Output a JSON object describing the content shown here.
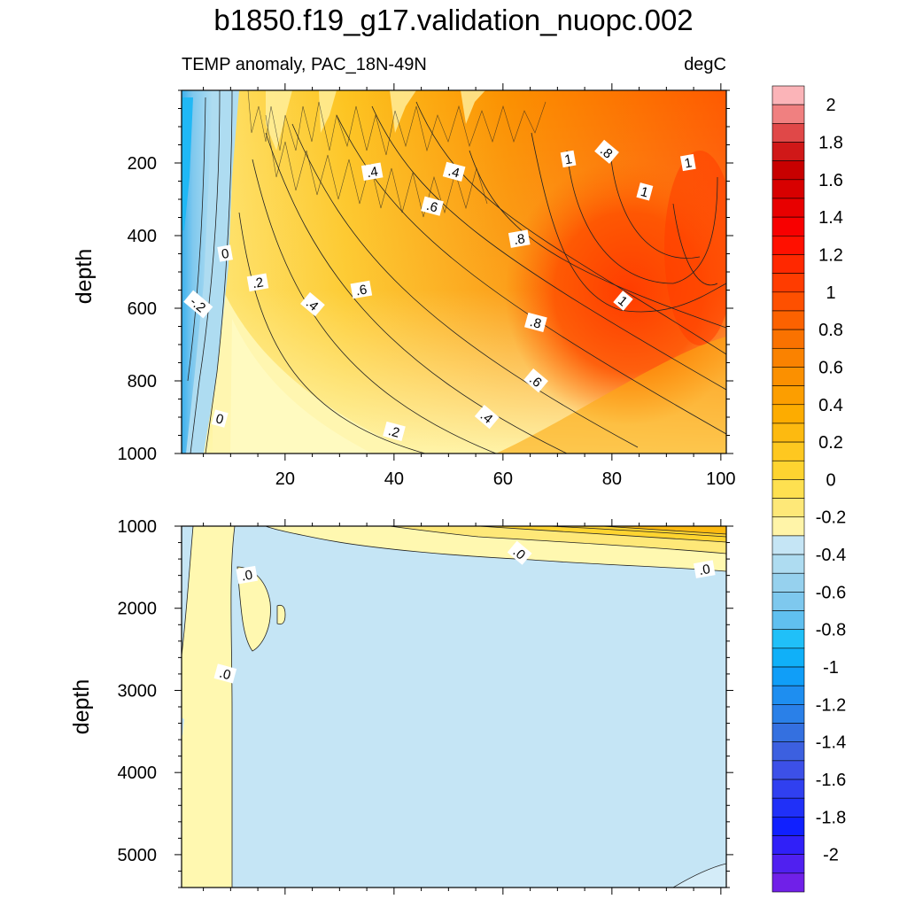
{
  "title": "b1850.f19_g17.validation_nuopc.002",
  "subtitle_left": "TEMP anomaly, PAC_18N-49N",
  "subtitle_right": "degC",
  "chart_data": [
    {
      "type": "heatmap",
      "panel": "upper",
      "x_ticks": [
        20,
        40,
        60,
        80,
        100
      ],
      "x_tick_labels": [
        "20",
        "40",
        "60",
        "80",
        "100"
      ],
      "y_ticks": [
        200,
        400,
        600,
        800,
        1000
      ],
      "y_tick_labels": [
        "200",
        "400",
        "600",
        "800",
        "1000"
      ],
      "xlim": [
        1,
        101
      ],
      "ylim": [
        0,
        1000
      ],
      "y_reversed": true,
      "xlabel": "",
      "ylabel": "depth",
      "contour_labels": [
        {
          "text": "0",
          "x": 9,
          "depth": 450
        },
        {
          "text": "0",
          "x": 8,
          "depth": 905
        },
        {
          "text": "-.2",
          "x": 4,
          "depth": 590
        },
        {
          "text": ".2",
          "x": 15,
          "depth": 530
        },
        {
          "text": ".2",
          "x": 40,
          "depth": 940
        },
        {
          "text": ".4",
          "x": 25,
          "depth": 590
        },
        {
          "text": ".4",
          "x": 36,
          "depth": 225
        },
        {
          "text": ".4",
          "x": 51,
          "depth": 225
        },
        {
          "text": ".4",
          "x": 57,
          "depth": 900
        },
        {
          "text": ".6",
          "x": 34,
          "depth": 550
        },
        {
          "text": ".6",
          "x": 47,
          "depth": 320
        },
        {
          "text": ".6",
          "x": 66,
          "depth": 800
        },
        {
          "text": ".8",
          "x": 63,
          "depth": 410
        },
        {
          "text": ".8",
          "x": 66,
          "depth": 640
        },
        {
          "text": ".8",
          "x": 79,
          "depth": 170
        },
        {
          "text": "1",
          "x": 72,
          "depth": 190
        },
        {
          "text": "1",
          "x": 86,
          "depth": 280
        },
        {
          "text": "1",
          "x": 82,
          "depth": 580
        },
        {
          "text": "1",
          "x": 94,
          "depth": 200
        }
      ]
    },
    {
      "type": "heatmap",
      "panel": "lower",
      "x_ticks": [
        20,
        40,
        60,
        80,
        100
      ],
      "y_ticks": [
        1000,
        2000,
        3000,
        4000,
        5000
      ],
      "y_tick_labels": [
        "1000",
        "2000",
        "3000",
        "4000",
        "5000"
      ],
      "xlim": [
        1,
        101
      ],
      "ylim": [
        1000,
        5400
      ],
      "y_reversed": true,
      "xlabel": "",
      "ylabel": "depth",
      "contour_labels": [
        {
          "text": ".0",
          "x": 13,
          "depth": 1600
        },
        {
          "text": ".0",
          "x": 9,
          "depth": 2800
        },
        {
          "text": ".0",
          "x": 63,
          "depth": 1330
        },
        {
          "text": ".0",
          "x": 97,
          "depth": 1530
        }
      ]
    }
  ],
  "colorbar": {
    "labels": [
      "2",
      "1.8",
      "1.6",
      "1.4",
      "1.2",
      "1",
      "0.8",
      "0.6",
      "0.4",
      "0.2",
      "0",
      "-0.2",
      "-0.4",
      "-0.6",
      "-0.8",
      "-1",
      "-1.2",
      "-1.4",
      "-1.6",
      "-1.8",
      "-2"
    ],
    "colors": [
      "#fbb4b8",
      "#f08080",
      "#e04848",
      "#d01818",
      "#c80000",
      "#d80000",
      "#e80000",
      "#f80000",
      "#ff1000",
      "#ff2800",
      "#ff3c00",
      "#fe5000",
      "#fc6200",
      "#fa7200",
      "#fa8200",
      "#fb9000",
      "#fc9e00",
      "#fdac00",
      "#fdba10",
      "#fec820",
      "#fed430",
      "#fee050",
      "#fee878",
      "#fff4a8",
      "#c5e5f5",
      "#aedcf1",
      "#96d1ee",
      "#7ec8ee",
      "#60c0f0",
      "#20c0f8",
      "#10b0f8",
      "#109ef8",
      "#1e8ef0",
      "#2a80e8",
      "#3470e0",
      "#3c60e0",
      "#3c50e8",
      "#3040f0",
      "#2030f8",
      "#1020ff",
      "#3020f8",
      "#5020f0",
      "#7020e8"
    ]
  },
  "colors": {
    "cold_pale": "#c5e5f5",
    "warm_pale": "#fff8b0",
    "peak_red": "#ff5000"
  }
}
